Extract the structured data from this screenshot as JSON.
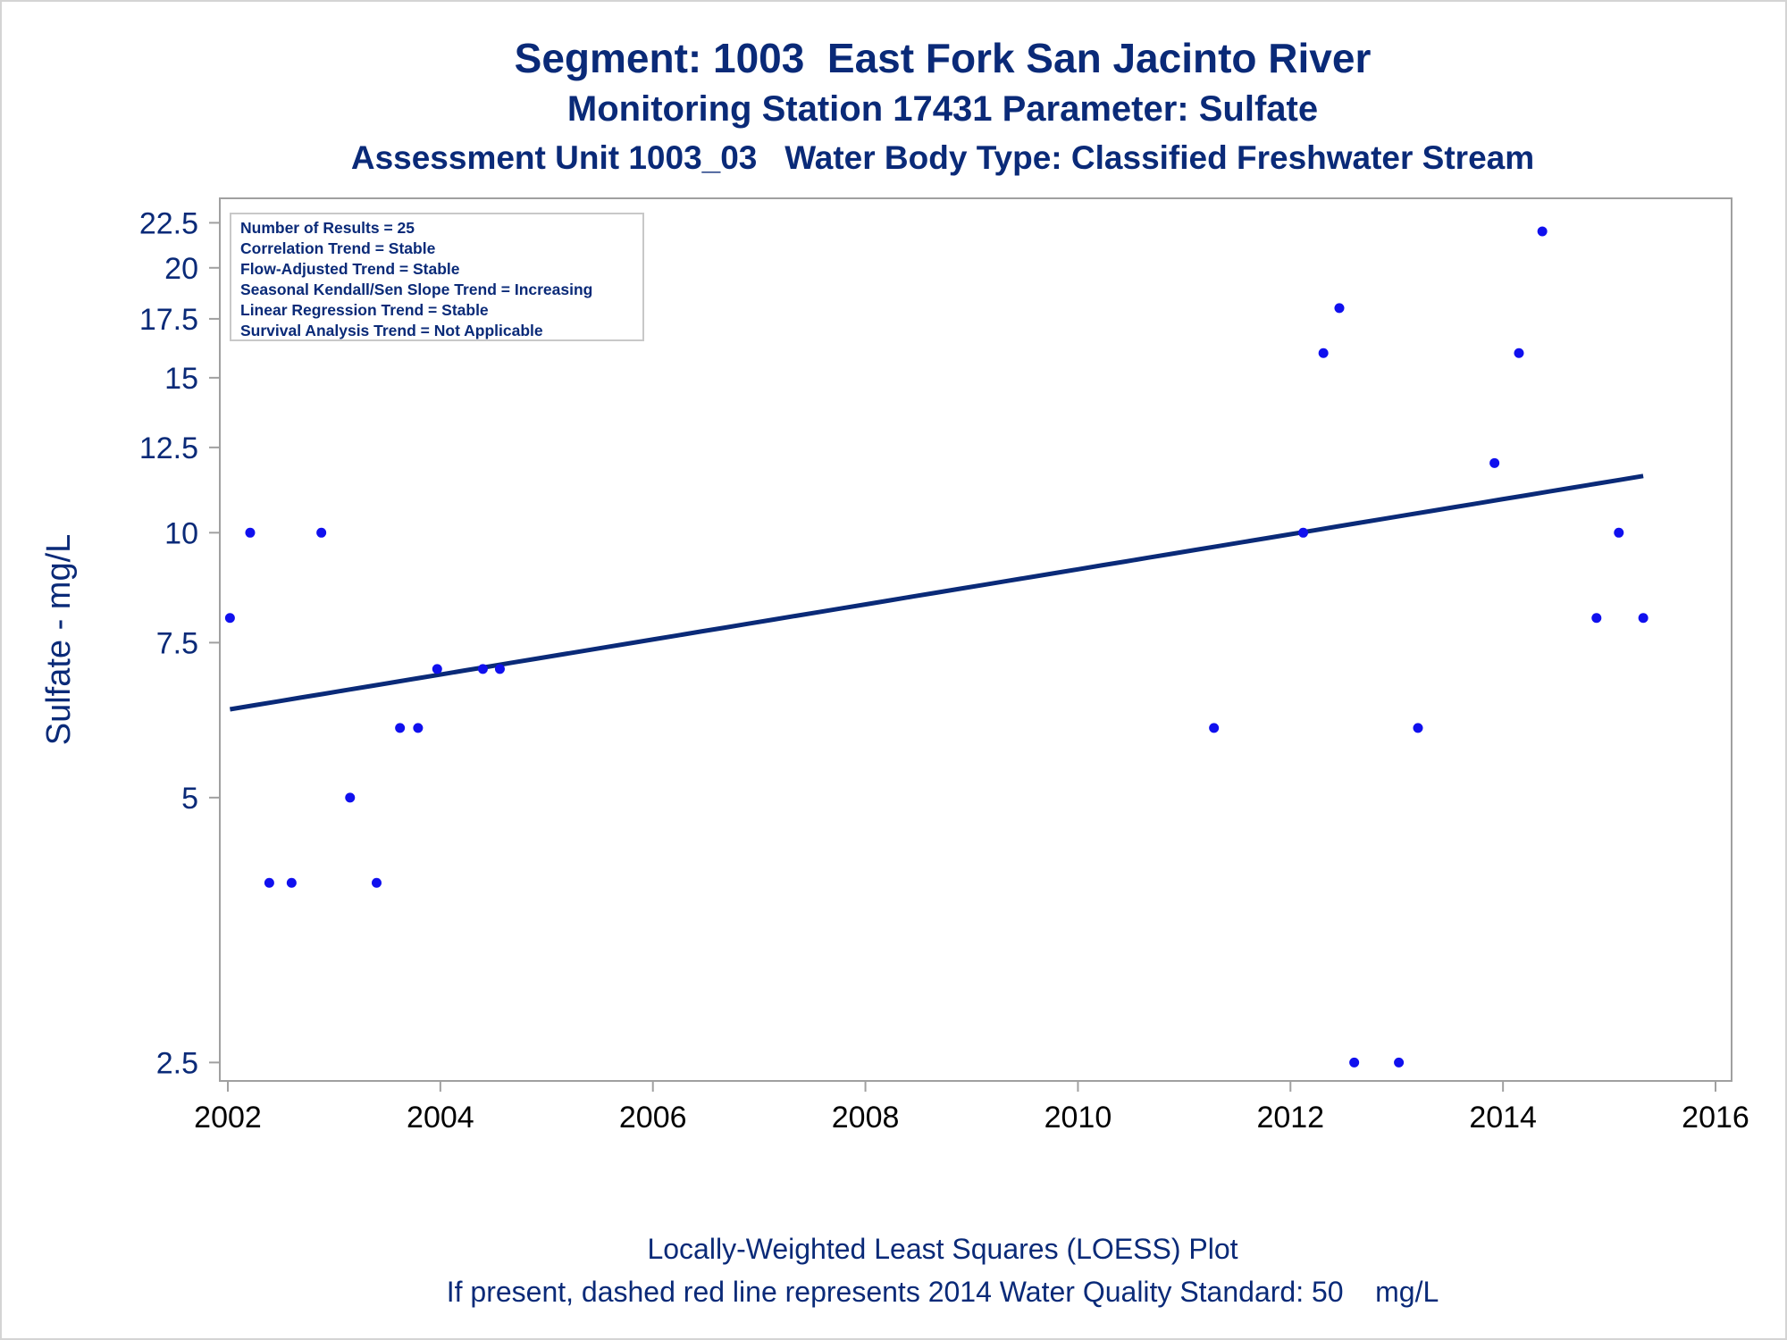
{
  "titles": {
    "line1": "Segment: 1003  East Fork San Jacinto River",
    "line2": "Monitoring Station 17431 Parameter: Sulfate",
    "line3": "Assessment Unit 1003_03   Water Body Type: Classified Freshwater Stream"
  },
  "footnotes": {
    "line1": "Locally-Weighted Least Squares (LOESS) Plot",
    "line2": "If present, dashed red line represents 2014 Water Quality Standard: 50    mg/L"
  },
  "stats_box": [
    "Number of Results = 25",
    "Correlation Trend = Stable",
    "Flow-Adjusted Trend = Stable",
    "Seasonal Kendall/Sen Slope Trend = Increasing",
    "Linear Regression Trend = Stable",
    "Survival Analysis Trend = Not Applicable"
  ],
  "colors": {
    "title": "#0a2a78",
    "points": "#1010ee",
    "trend_line": "#0a2a78",
    "axis": "#a0a0a0"
  },
  "chart_data": {
    "type": "scatter",
    "ylabel": "Sulfate - mg/L",
    "xlabel": "",
    "y_scale": "log",
    "xlim": [
      2002,
      2016
    ],
    "ylim": [
      2.45,
      23.0
    ],
    "x_ticks": [
      2002,
      2004,
      2006,
      2008,
      2010,
      2012,
      2014,
      2016
    ],
    "y_ticks": [
      2.5,
      5,
      7.5,
      10,
      12.5,
      15,
      17.5,
      20,
      22.5
    ],
    "grid": false,
    "points": [
      {
        "x": 2002.02,
        "y": 8
      },
      {
        "x": 2002.21,
        "y": 10
      },
      {
        "x": 2002.39,
        "y": 4
      },
      {
        "x": 2002.6,
        "y": 4
      },
      {
        "x": 2002.88,
        "y": 10
      },
      {
        "x": 2003.15,
        "y": 5
      },
      {
        "x": 2003.4,
        "y": 4
      },
      {
        "x": 2003.62,
        "y": 6
      },
      {
        "x": 2003.79,
        "y": 6
      },
      {
        "x": 2003.97,
        "y": 7
      },
      {
        "x": 2004.4,
        "y": 7
      },
      {
        "x": 2004.56,
        "y": 7
      },
      {
        "x": 2011.28,
        "y": 6
      },
      {
        "x": 2012.12,
        "y": 10
      },
      {
        "x": 2012.31,
        "y": 16
      },
      {
        "x": 2012.46,
        "y": 18
      },
      {
        "x": 2012.6,
        "y": 2.5
      },
      {
        "x": 2013.02,
        "y": 2.5
      },
      {
        "x": 2013.2,
        "y": 6
      },
      {
        "x": 2013.92,
        "y": 12
      },
      {
        "x": 2014.15,
        "y": 16
      },
      {
        "x": 2014.37,
        "y": 22
      },
      {
        "x": 2014.88,
        "y": 8
      },
      {
        "x": 2015.09,
        "y": 10
      },
      {
        "x": 2015.32,
        "y": 8
      }
    ],
    "trend_line": {
      "name": "LOESS",
      "x": [
        2002.02,
        2015.32
      ],
      "y": [
        6.3,
        11.6
      ]
    }
  }
}
